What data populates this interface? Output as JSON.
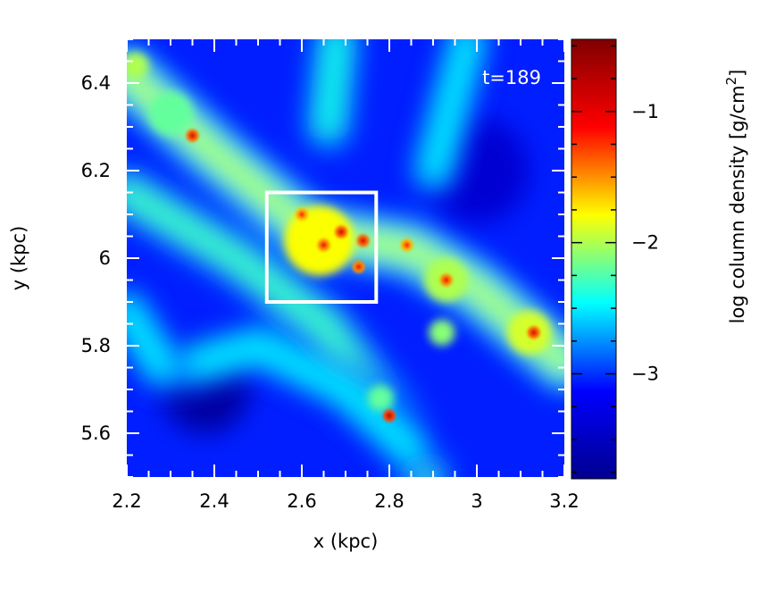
{
  "chart_data": {
    "type": "heatmap",
    "annotation": "t=189",
    "xlabel": "x (kpc)",
    "ylabel": "y (kpc)",
    "xlim": [
      2.2,
      3.2
    ],
    "ylim": [
      5.5,
      6.5
    ],
    "xticks": [
      {
        "value": 2.2,
        "label": "2.2"
      },
      {
        "value": 2.4,
        "label": "2.4"
      },
      {
        "value": 2.6,
        "label": "2.6"
      },
      {
        "value": 2.8,
        "label": "2.8"
      },
      {
        "value": 3.0,
        "label": "3"
      },
      {
        "value": 3.2,
        "label": "3.2"
      }
    ],
    "yticks": [
      {
        "value": 5.6,
        "label": "5.6"
      },
      {
        "value": 5.8,
        "label": "5.8"
      },
      {
        "value": 6.0,
        "label": "6"
      },
      {
        "value": 6.2,
        "label": "6.2"
      },
      {
        "value": 6.4,
        "label": "6.4"
      }
    ],
    "colorbar": {
      "label_main": "log column density [g/cm",
      "label_sup": "2",
      "label_close": "]",
      "range": [
        -3.8,
        -0.45
      ],
      "ticks": [
        {
          "value": -1,
          "label": "−1"
        },
        {
          "value": -2,
          "label": "−2"
        },
        {
          "value": -3,
          "label": "−3"
        }
      ],
      "colormap": [
        "#00008f",
        "#0000ff",
        "#00ffff",
        "#ffff00",
        "#ff0000",
        "#800000"
      ]
    },
    "highlight_box": {
      "x": [
        2.52,
        2.77
      ],
      "y": [
        5.9,
        6.15
      ]
    },
    "filaments": [
      {
        "points": [
          [
            2.2,
            6.42
          ],
          [
            2.4,
            6.24
          ],
          [
            2.62,
            6.06
          ],
          [
            2.85,
            6.02
          ],
          [
            3.0,
            5.93
          ],
          [
            3.2,
            5.76
          ]
        ],
        "level": -2.3
      },
      {
        "points": [
          [
            2.2,
            6.15
          ],
          [
            2.45,
            6.0
          ],
          [
            2.65,
            5.85
          ],
          [
            2.8,
            5.65
          ],
          [
            2.88,
            5.5
          ]
        ],
        "level": -2.6
      },
      {
        "points": [
          [
            2.32,
            5.75
          ],
          [
            2.5,
            5.8
          ],
          [
            2.7,
            5.7
          ],
          [
            2.85,
            5.56
          ]
        ],
        "level": -2.8
      },
      {
        "points": [
          [
            2.66,
            6.3
          ],
          [
            2.68,
            6.5
          ]
        ],
        "level": -2.7
      },
      {
        "points": [
          [
            2.9,
            6.2
          ],
          [
            2.98,
            6.5
          ]
        ],
        "level": -2.8
      },
      {
        "points": [
          [
            2.2,
            5.88
          ],
          [
            2.28,
            5.75
          ]
        ],
        "level": -2.8
      }
    ],
    "blobs": [
      {
        "x": 2.64,
        "y": 6.04,
        "r": 0.08,
        "level": -1.8
      },
      {
        "x": 2.3,
        "y": 6.33,
        "r": 0.05,
        "level": -2.2
      },
      {
        "x": 2.93,
        "y": 5.95,
        "r": 0.05,
        "level": -2.0
      },
      {
        "x": 3.12,
        "y": 5.83,
        "r": 0.05,
        "level": -1.9
      },
      {
        "x": 2.92,
        "y": 5.83,
        "r": 0.03,
        "level": -2.1
      },
      {
        "x": 2.78,
        "y": 5.68,
        "r": 0.03,
        "level": -2.2
      },
      {
        "x": 2.22,
        "y": 6.44,
        "r": 0.03,
        "level": -2.0
      }
    ],
    "voids": [
      {
        "x": 2.38,
        "y": 5.7,
        "r": 0.1,
        "level": -3.7
      },
      {
        "x": 3.0,
        "y": 6.2,
        "r": 0.12,
        "level": -3.4
      }
    ],
    "cores": [
      {
        "x": 2.35,
        "y": 6.28,
        "level": -0.9
      },
      {
        "x": 2.6,
        "y": 6.1,
        "level": -1.1
      },
      {
        "x": 2.69,
        "y": 6.06,
        "level": -0.9
      },
      {
        "x": 2.65,
        "y": 6.03,
        "level": -1.0
      },
      {
        "x": 2.74,
        "y": 6.04,
        "level": -0.9
      },
      {
        "x": 2.73,
        "y": 5.98,
        "level": -1.0
      },
      {
        "x": 2.84,
        "y": 6.03,
        "level": -1.1
      },
      {
        "x": 2.93,
        "y": 5.95,
        "level": -1.0
      },
      {
        "x": 3.13,
        "y": 5.83,
        "level": -0.9
      },
      {
        "x": 2.8,
        "y": 5.64,
        "level": -0.8
      }
    ]
  }
}
